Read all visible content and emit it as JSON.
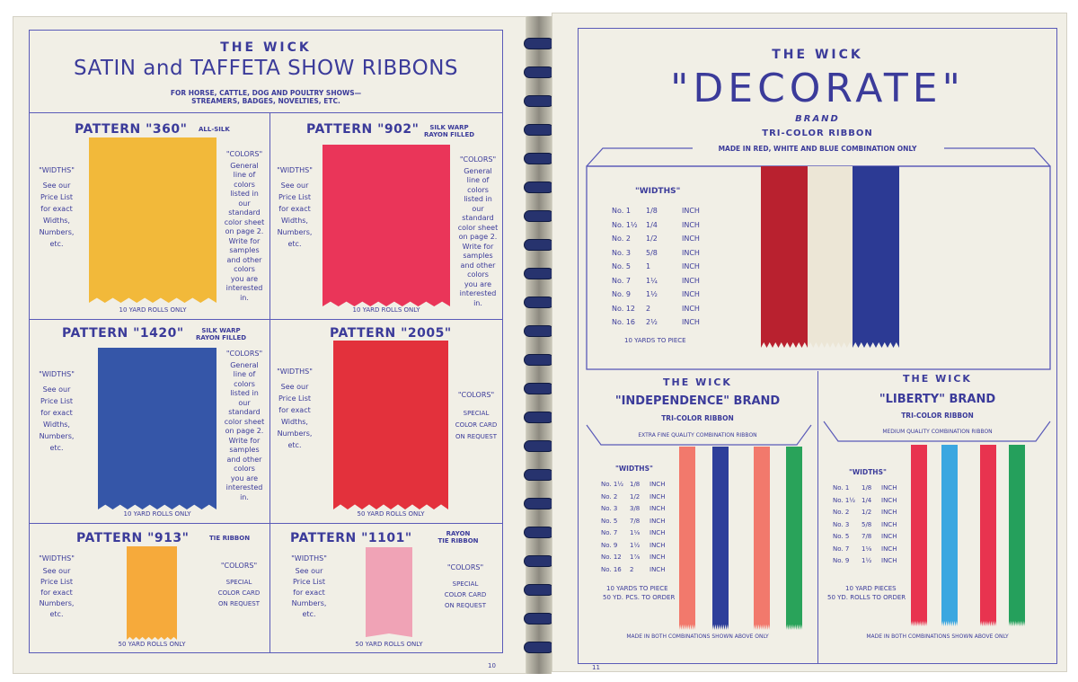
{
  "left_page": {
    "brand": "THE WICK",
    "title": "SATIN and TAFFETA SHOW RIBBONS",
    "subtitle_line1": "FOR HORSE, CATTLE, DOG AND POULTRY SHOWS—",
    "subtitle_line2": "STREAMERS, BADGES, NOVELTIES, ETC.",
    "page_number": "10",
    "widths_label": "\"WIDTHS\"",
    "colors_label": "\"COLORS\"",
    "widths_text": [
      "See our",
      "Price List",
      "for exact",
      "Widths,",
      "Numbers,",
      "etc."
    ],
    "widths_text_913": [
      "See our",
      "Price List",
      "for exact",
      "Numbers,",
      "etc."
    ],
    "colors_general": [
      "General",
      "line of",
      "colors",
      "listed in",
      "our",
      "standard",
      "color sheet",
      "on page 2.",
      "Write for",
      "samples",
      "and other",
      "colors",
      "you are",
      "interested",
      "in."
    ],
    "colors_special": [
      "SPECIAL",
      "COLOR CARD",
      "ON REQUEST"
    ],
    "patterns": {
      "p360": {
        "name": "PATTERN \"360\"",
        "note": "ALL-SILK",
        "rolls": "10 YARD ROLLS ONLY",
        "color": "#f2b93a"
      },
      "p902": {
        "name": "PATTERN \"902\"",
        "note1": "SILK WARP",
        "note2": "RAYON FILLED",
        "rolls": "10 YARD ROLLS ONLY",
        "color": "#ea3559"
      },
      "p1420": {
        "name": "PATTERN \"1420\"",
        "note1": "SILK WARP",
        "note2": "RAYON FILLED",
        "rolls": "10 YARD ROLLS ONLY",
        "color": "#3556a8"
      },
      "p2005": {
        "name": "PATTERN \"2005\"",
        "rolls": "50 YARD ROLLS ONLY",
        "color": "#e3313c"
      },
      "p913": {
        "name": "PATTERN \"913\"",
        "note": "TIE RIBBON",
        "rolls": "50 YARD ROLLS ONLY",
        "color": "#f6aa3b"
      },
      "p1101": {
        "name": "PATTERN \"1101\"",
        "note1": "RAYON",
        "note2": "TIE RIBBON",
        "rolls": "50 YARD ROLLS ONLY",
        "color": "#f0a3b6"
      }
    }
  },
  "right_page": {
    "page_number": "11",
    "decorate": {
      "brand": "THE WICK",
      "title": "\"DECORATE\"",
      "brand_word": "BRAND",
      "type": "TRI-COLOR RIBBON",
      "note": "MADE IN RED, WHITE AND BLUE COMBINATION ONLY",
      "widths_label": "\"WIDTHS\"",
      "rows": [
        {
          "no": "No. 1",
          "w": "1/8",
          "unit": "INCH"
        },
        {
          "no": "No. 1½",
          "w": "1/4",
          "unit": "INCH"
        },
        {
          "no": "No. 2",
          "w": "1/2",
          "unit": "INCH"
        },
        {
          "no": "No. 3",
          "w": "5/8",
          "unit": "INCH"
        },
        {
          "no": "No. 5",
          "w": "1",
          "unit": "INCH"
        },
        {
          "no": "No. 7",
          "w": "1¼",
          "unit": "INCH"
        },
        {
          "no": "No. 9",
          "w": "1½",
          "unit": "INCH"
        },
        {
          "no": "No. 12",
          "w": "2",
          "unit": "INCH"
        },
        {
          "no": "No. 16",
          "w": "2½",
          "unit": "INCH"
        }
      ],
      "pieces": "10 YARDS TO PIECE",
      "colors": [
        "#b9212f",
        "#ece6d6",
        "#2c3a94"
      ]
    },
    "independence": {
      "brand": "THE WICK",
      "title": "\"INDEPENDENCE\" BRAND",
      "type": "TRI-COLOR RIBBON",
      "note": "EXTRA FINE QUALITY COMBINATION RIBBON",
      "widths_label": "\"WIDTHS\"",
      "rows": [
        {
          "no": "No. 1½",
          "w": "1/8",
          "unit": "INCH"
        },
        {
          "no": "No. 2",
          "w": "1/2",
          "unit": "INCH"
        },
        {
          "no": "No. 3",
          "w": "3/8",
          "unit": "INCH"
        },
        {
          "no": "No. 5",
          "w": "7/8",
          "unit": "INCH"
        },
        {
          "no": "No. 7",
          "w": "1⅛",
          "unit": "INCH"
        },
        {
          "no": "No. 9",
          "w": "1½",
          "unit": "INCH"
        },
        {
          "no": "No. 12",
          "w": "1⅞",
          "unit": "INCH"
        },
        {
          "no": "No. 16",
          "w": "2",
          "unit": "INCH"
        }
      ],
      "pieces": "10 YARDS TO PIECE",
      "rolls": "50 YD. PCS. TO ORDER",
      "footer": "MADE IN BOTH COMBINATIONS SHOWN ABOVE ONLY",
      "colors": [
        "#f2796c",
        "#2e3f9a",
        "#f2796c",
        "#29a35a"
      ]
    },
    "liberty": {
      "brand": "THE WICK",
      "title": "\"LIBERTY\" BRAND",
      "type": "TRI-COLOR RIBBON",
      "note": "MEDIUM QUALITY COMBINATION RIBBON",
      "widths_label": "\"WIDTHS\"",
      "rows": [
        {
          "no": "No. 1",
          "w": "1/8",
          "unit": "INCH"
        },
        {
          "no": "No. 1½",
          "w": "1/4",
          "unit": "INCH"
        },
        {
          "no": "No. 2",
          "w": "1/2",
          "unit": "INCH"
        },
        {
          "no": "No. 3",
          "w": "5/8",
          "unit": "INCH"
        },
        {
          "no": "No. 5",
          "w": "7/8",
          "unit": "INCH"
        },
        {
          "no": "No. 7",
          "w": "1⅛",
          "unit": "INCH"
        },
        {
          "no": "No. 9",
          "w": "1½",
          "unit": "INCH"
        }
      ],
      "pieces": "10 YARD PIECES",
      "rolls": "50 YD. ROLLS TO ORDER",
      "footer": "MADE IN BOTH COMBINATIONS SHOWN ABOVE ONLY",
      "colors": [
        "#e8334f",
        "#3ba7e0",
        "#e8334f",
        "#25a05c"
      ]
    }
  }
}
